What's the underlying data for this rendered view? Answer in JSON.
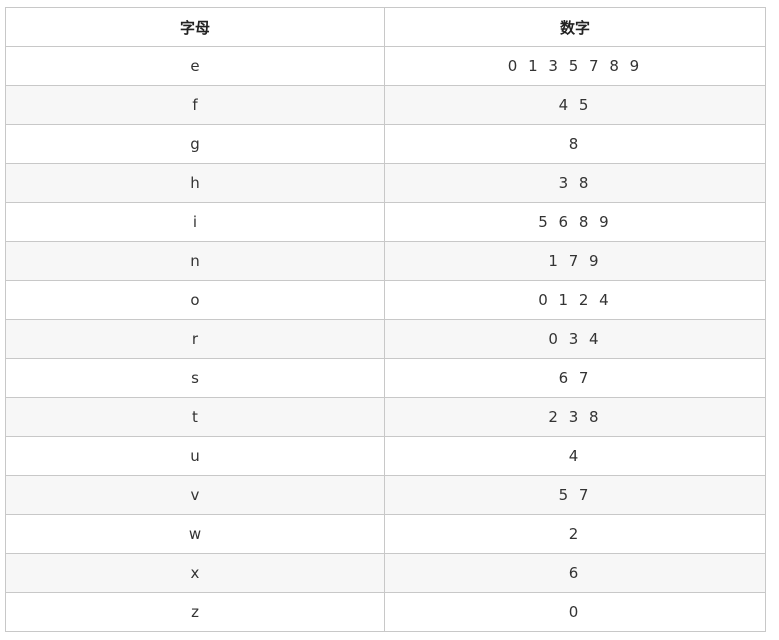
{
  "table": {
    "headers": [
      "字母",
      "数字"
    ],
    "rows": [
      {
        "letter": "e",
        "digits": "0 1 3 5 7 8 9"
      },
      {
        "letter": "f",
        "digits": "4 5"
      },
      {
        "letter": "g",
        "digits": "8"
      },
      {
        "letter": "h",
        "digits": "3 8"
      },
      {
        "letter": "i",
        "digits": "5 6 8 9"
      },
      {
        "letter": "n",
        "digits": "1 7 9"
      },
      {
        "letter": "o",
        "digits": "0 1 2 4"
      },
      {
        "letter": "r",
        "digits": "0 3 4"
      },
      {
        "letter": "s",
        "digits": "6 7"
      },
      {
        "letter": "t",
        "digits": "2 3 8"
      },
      {
        "letter": "u",
        "digits": "4"
      },
      {
        "letter": "v",
        "digits": "5 7"
      },
      {
        "letter": "w",
        "digits": "2"
      },
      {
        "letter": "x",
        "digits": "6"
      },
      {
        "letter": "z",
        "digits": "0"
      }
    ]
  },
  "colors": {
    "border": "#c8c8c8",
    "stripe": "#f7f7f7",
    "text": "#333333"
  }
}
